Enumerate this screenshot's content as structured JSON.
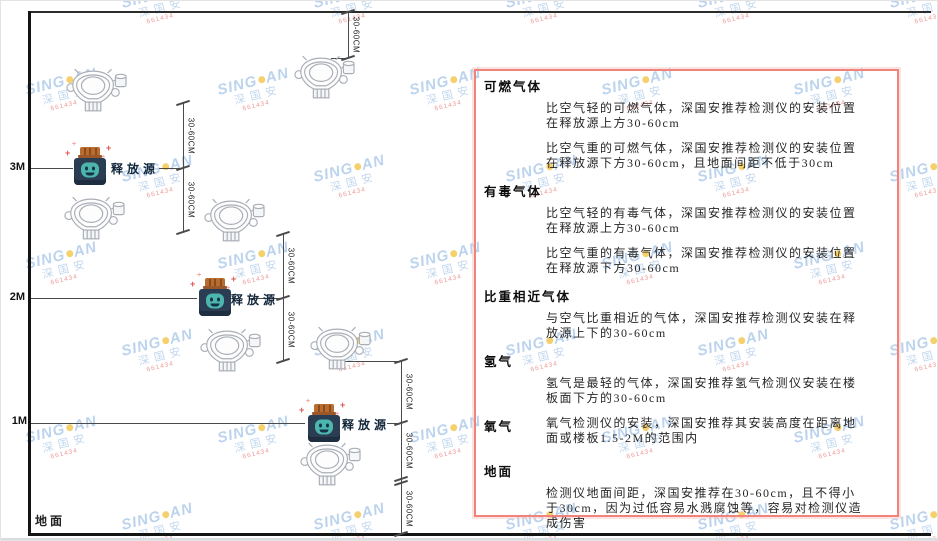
{
  "diagram": {
    "height_labels": [
      "3M",
      "2M",
      "1M"
    ],
    "source_label": "释放源",
    "ground_label": "地面",
    "dimension_label": "30-60CM",
    "release_source_count": 3,
    "detector_count": 7
  },
  "panel": {
    "sections": [
      {
        "id": "combustible",
        "heading": "可燃气体",
        "inline": false,
        "paragraphs": [
          "比空气轻的可燃气体，深国安推荐检测仪的安装位置在释放源上方30-60cm",
          "比空气重的可燃气体，深国安推荐检测仪的安装位置在释放源下方30-60cm，且地面间距不低于30cm"
        ]
      },
      {
        "id": "toxic",
        "heading": "有毒气体",
        "inline": false,
        "paragraphs": [
          "比空气轻的有毒气体，深国安推荐检测仪的安装位置在释放源上方30-60cm",
          "比空气重的有毒气体，深国安推荐检测仪的安装位置在释放源下方30-60cm"
        ]
      },
      {
        "id": "similar-density",
        "heading": "比重相近气体",
        "inline": false,
        "paragraphs": [
          "与空气比重相近的气体，深国安推荐检测仪安装在释放源上下的30-60cm"
        ]
      },
      {
        "id": "hydrogen",
        "heading": "氢气",
        "inline": false,
        "paragraphs": [
          "氢气是最轻的气体，深国安推荐氢气检测仪安装在楼板面下方的30-60cm"
        ]
      },
      {
        "id": "oxygen",
        "heading": "氧气",
        "inline": true,
        "paragraphs": [
          "氧气检测仪的安装，深国安推荐其安装高度在距离地面或楼板1.5-2M的范围内"
        ]
      },
      {
        "id": "ground",
        "heading": "地面",
        "inline": false,
        "paragraphs": [
          "检测仪地面间距，深国安推荐在30-60cm，且不得小于30cm，因为过低容易水溅腐蚀等，容易对检测仪造成伤害"
        ]
      }
    ]
  },
  "watermark": {
    "brand_left": "SING",
    "brand_right": "AN",
    "sub": "深国安",
    "code": "661434"
  },
  "colors": {
    "panel_border": "#f0837c",
    "source_body": "#2b3d52",
    "source_cap": "#b96c2e",
    "source_face": "#4db6ac",
    "watermark_blue": "#84afde",
    "spark_red": "#e05050",
    "line_dark": "#141414"
  }
}
